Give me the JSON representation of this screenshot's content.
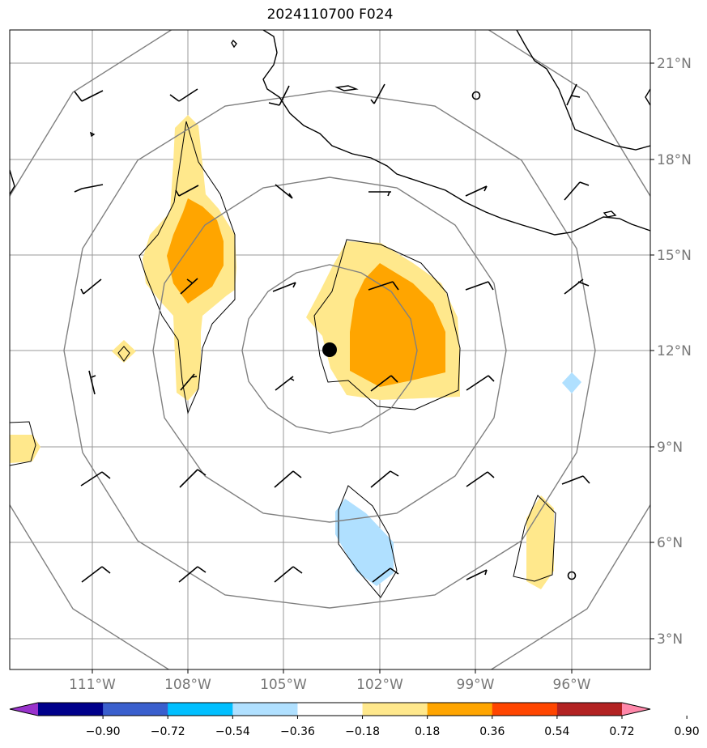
{
  "title": "2024110700 F024",
  "lon_labels": [
    "111°W",
    "108°W",
    "105°W",
    "102°W",
    "99°W",
    "96°W"
  ],
  "lat_labels": [
    "21°N",
    "18°N",
    "15°N",
    "12°N",
    "9°N",
    "6°N",
    "3°N"
  ],
  "colorbar": {
    "ticks": [
      "−0.90",
      "−0.72",
      "−0.54",
      "−0.36",
      "−0.18",
      "0.18",
      "0.36",
      "0.54",
      "0.72",
      "0.90"
    ],
    "colors": [
      "#9932cc",
      "#00008b",
      "#3a5fcd",
      "#00bfff",
      "#b0e0ff",
      "#ffffff",
      "#ffe88c",
      "#ffa500",
      "#ff4500",
      "#b22222",
      "#ff88aa"
    ]
  },
  "map": {
    "extent_lon": [
      -113.6,
      -93.5
    ],
    "extent_lat": [
      2.0,
      22.0
    ],
    "center": {
      "lon": -103.5,
      "lat": 12.0
    },
    "gridline_color": "#999999",
    "range_ring_color": "#808080",
    "coastline_color": "#000000",
    "center_marker_color": "#000000"
  }
}
